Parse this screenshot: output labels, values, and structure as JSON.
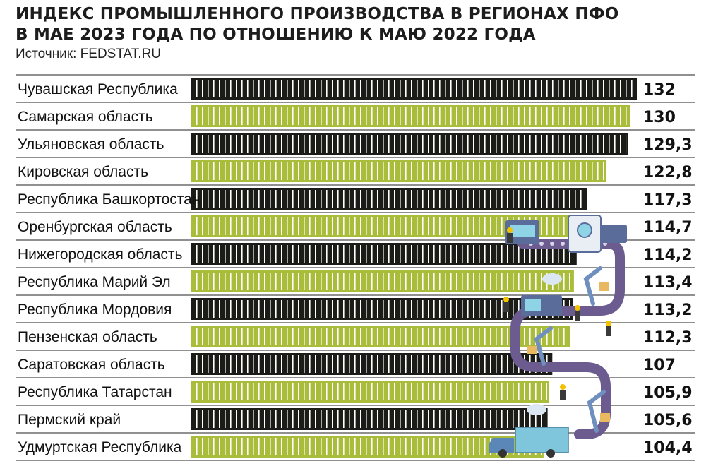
{
  "header": {
    "title_line1": "ИНДЕКС ПРОМЫШЛЕННОГО ПРОИЗВОДСТВА В РЕГИОНАХ ПФО",
    "title_line2": "В МАЕ 2023 ГОДА ПО ОТНОШЕНИЮ К МАЮ 2022 ГОДА",
    "source": "Источник: FEDSTAT.RU"
  },
  "colors": {
    "dark": "#1b1b17",
    "green": "#a9bd3a",
    "stripe_gap": "#ffffff",
    "conveyor": "#6b5b8f"
  },
  "illustration": {
    "icon": "factory-conveyor-illustration"
  },
  "chart_data": {
    "type": "bar",
    "orientation": "horizontal",
    "xlim": [
      0,
      132
    ],
    "grid": false,
    "bars": [
      {
        "category": "Чувашская Республика",
        "value": 132,
        "label": "132",
        "color": "dark"
      },
      {
        "category": "Самарская область",
        "value": 130,
        "label": "130",
        "color": "green"
      },
      {
        "category": "Ульяновская область",
        "value": 129.3,
        "label": "129,3",
        "color": "dark"
      },
      {
        "category": "Кировская область",
        "value": 122.8,
        "label": "122,8",
        "color": "green"
      },
      {
        "category": "Республика Башкортостан",
        "value": 117.3,
        "label": "117,3",
        "color": "dark"
      },
      {
        "category": "Оренбургская область",
        "value": 114.7,
        "label": "114,7",
        "color": "green"
      },
      {
        "category": "Нижегородская область",
        "value": 114.2,
        "label": "114,2",
        "color": "dark"
      },
      {
        "category": "Республика Марий Эл",
        "value": 113.4,
        "label": "113,4",
        "color": "green"
      },
      {
        "category": "Республика Мордовия",
        "value": 113.2,
        "label": "113,2",
        "color": "dark"
      },
      {
        "category": "Пензенская область",
        "value": 112.3,
        "label": "112,3",
        "color": "green"
      },
      {
        "category": "Саратовская область",
        "value": 107,
        "label": "107",
        "color": "dark"
      },
      {
        "category": "Республика Татарстан",
        "value": 105.9,
        "label": "105,9",
        "color": "green"
      },
      {
        "category": "Пермский край",
        "value": 105.6,
        "label": "105,6",
        "color": "dark"
      },
      {
        "category": "Удмуртская Республика",
        "value": 104.4,
        "label": "104,4",
        "color": "green"
      }
    ]
  }
}
